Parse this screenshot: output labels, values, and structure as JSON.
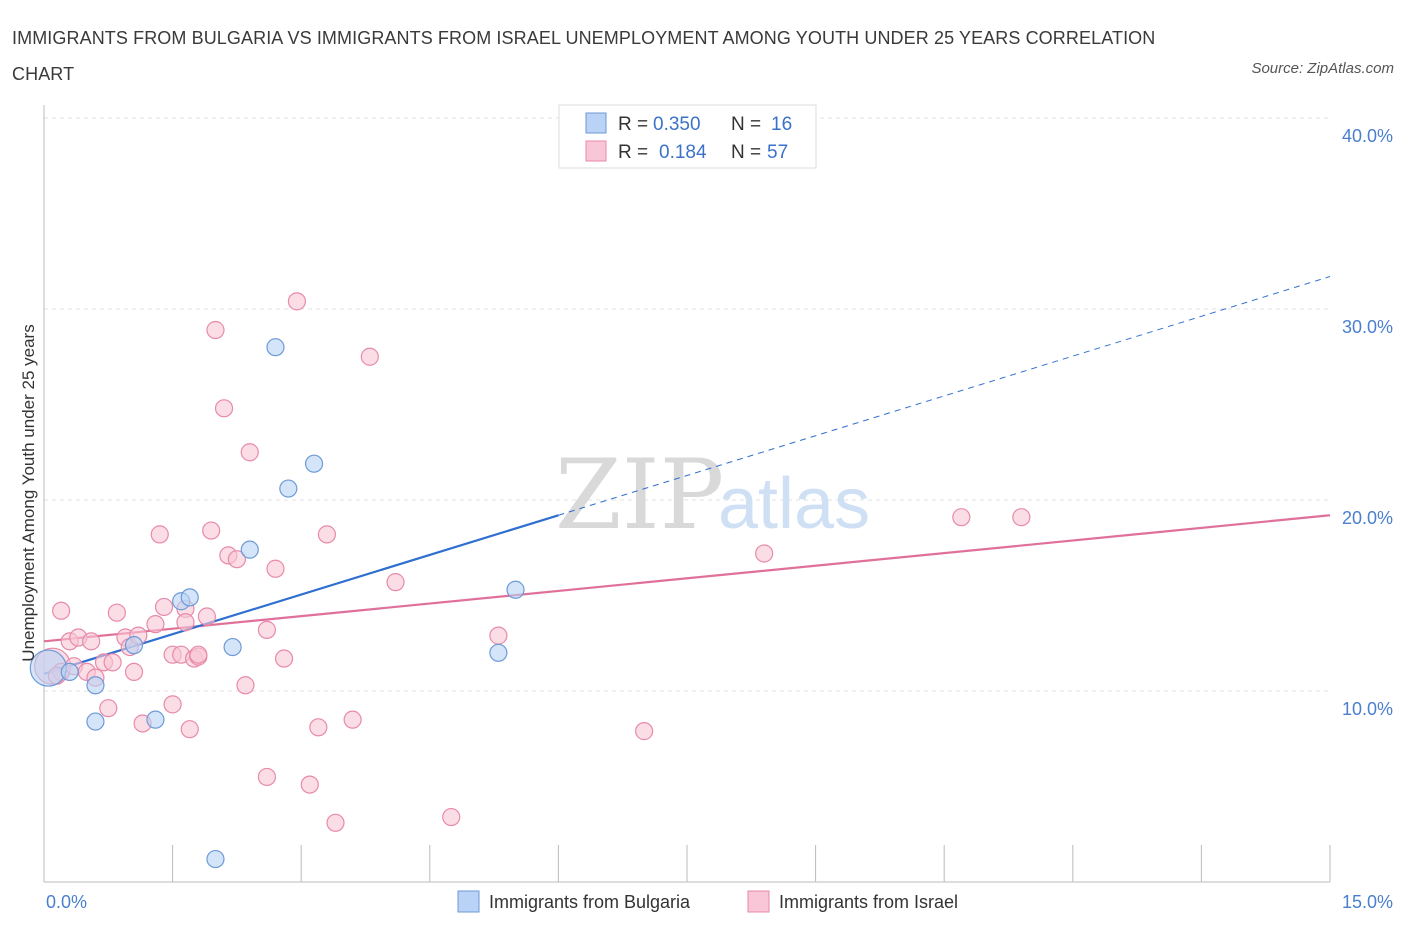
{
  "title": "IMMIGRANTS FROM BULGARIA VS IMMIGRANTS FROM ISRAEL UNEMPLOYMENT AMONG YOUTH UNDER 25 YEARS CORRELATION CHART",
  "source": "Source: ZipAtlas.com",
  "watermark": {
    "zip": "ZIP",
    "atlas": "atlas"
  },
  "colors": {
    "bulgaria_fill": "#b8d3f5",
    "bulgaria_stroke": "#6e9ad6",
    "bulgaria_line": "#2f6fd0",
    "israel_fill": "#f8c6d6",
    "israel_stroke": "#e88aaa",
    "israel_line": "#e0709a",
    "grid": "#e2e2e2",
    "tick_text": "#4a7fd0"
  },
  "legend": {
    "rows": [
      {
        "r_label": "R =",
        "r_value": "0.350",
        "n_label": "N =",
        "n_value": "16"
      },
      {
        "r_label": "R =",
        "r_value": "0.184",
        "n_label": "N =",
        "n_value": "57"
      }
    ]
  },
  "chart_data": {
    "type": "scatter",
    "title": "IMMIGRANTS FROM BULGARIA VS IMMIGRANTS FROM ISRAEL UNEMPLOYMENT AMONG YOUTH UNDER 25 YEARS CORRELATION CHART",
    "xlabel": "",
    "ylabel": "Unemployment Among Youth under 25 years",
    "xlim": [
      0,
      15
    ],
    "ylim": [
      0,
      40
    ],
    "x_tick_labels": [
      "0.0%",
      "15.0%"
    ],
    "y_ticks": [
      10,
      20,
      30,
      40
    ],
    "y_tick_labels": [
      "10.0%",
      "20.0%",
      "30.0%",
      "40.0%"
    ],
    "grid": true,
    "legend_position": "top-center",
    "series": [
      {
        "name": "Immigrants from Bulgaria",
        "R": 0.35,
        "N": 16,
        "trend": {
          "x0": 0.0,
          "y0": 10.9,
          "x1": 6.0,
          "y1": 19.2,
          "dashed_to_x": 15.0,
          "dashed_to_y": 31.7
        },
        "points": [
          [
            0.05,
            11.2,
            "big"
          ],
          [
            0.3,
            11.0
          ],
          [
            0.6,
            10.3
          ],
          [
            0.6,
            8.4
          ],
          [
            1.05,
            12.4
          ],
          [
            1.3,
            8.5
          ],
          [
            1.6,
            14.7
          ],
          [
            1.7,
            14.9
          ],
          [
            2.2,
            12.3
          ],
          [
            2.4,
            17.4
          ],
          [
            2.7,
            28.0
          ],
          [
            2.85,
            20.6
          ],
          [
            3.15,
            21.9
          ],
          [
            5.3,
            12.0
          ],
          [
            5.5,
            15.3
          ],
          [
            2.0,
            1.2
          ]
        ]
      },
      {
        "name": "Immigrants from Israel",
        "R": 0.184,
        "N": 57,
        "trend": {
          "x0": 0.0,
          "y0": 12.6,
          "x1": 15.0,
          "y1": 19.2
        },
        "points": [
          [
            0.1,
            11.3,
            "big"
          ],
          [
            0.2,
            14.2
          ],
          [
            0.2,
            11.0
          ],
          [
            0.3,
            12.6
          ],
          [
            0.35,
            11.3
          ],
          [
            0.4,
            12.8
          ],
          [
            0.5,
            11.0
          ],
          [
            0.55,
            12.6
          ],
          [
            0.6,
            10.7
          ],
          [
            0.7,
            11.5
          ],
          [
            0.75,
            9.1
          ],
          [
            0.8,
            11.5
          ],
          [
            0.85,
            14.1
          ],
          [
            0.95,
            12.8
          ],
          [
            1.0,
            12.3
          ],
          [
            1.05,
            11.0
          ],
          [
            1.1,
            12.9
          ],
          [
            1.15,
            8.3
          ],
          [
            1.3,
            13.5
          ],
          [
            1.35,
            18.2
          ],
          [
            1.4,
            14.4
          ],
          [
            1.5,
            11.9
          ],
          [
            1.5,
            9.3
          ],
          [
            1.6,
            11.9
          ],
          [
            1.65,
            14.3
          ],
          [
            1.65,
            13.6
          ],
          [
            1.7,
            8.0
          ],
          [
            1.75,
            11.7
          ],
          [
            1.8,
            11.8
          ],
          [
            1.9,
            13.9
          ],
          [
            1.95,
            18.4
          ],
          [
            2.0,
            28.9
          ],
          [
            2.1,
            24.8
          ],
          [
            2.15,
            17.1
          ],
          [
            2.25,
            16.9
          ],
          [
            2.35,
            10.3
          ],
          [
            2.4,
            22.5
          ],
          [
            2.6,
            13.2
          ],
          [
            2.6,
            5.5
          ],
          [
            2.7,
            16.4
          ],
          [
            2.8,
            11.7
          ],
          [
            2.95,
            30.4
          ],
          [
            3.1,
            5.1
          ],
          [
            3.2,
            8.1
          ],
          [
            3.3,
            18.2
          ],
          [
            3.4,
            3.1
          ],
          [
            3.6,
            8.5
          ],
          [
            3.8,
            27.5
          ],
          [
            4.1,
            15.7
          ],
          [
            4.75,
            3.4
          ],
          [
            5.3,
            12.9
          ],
          [
            7.0,
            7.9
          ],
          [
            8.4,
            17.2
          ],
          [
            10.7,
            19.1
          ],
          [
            11.4,
            19.1
          ],
          [
            1.8,
            11.9
          ],
          [
            0.15,
            10.8
          ]
        ]
      }
    ]
  },
  "bottom_legend": {
    "bulgaria_label": "Immigrants from Bulgaria",
    "israel_label": "Immigrants from Israel"
  }
}
